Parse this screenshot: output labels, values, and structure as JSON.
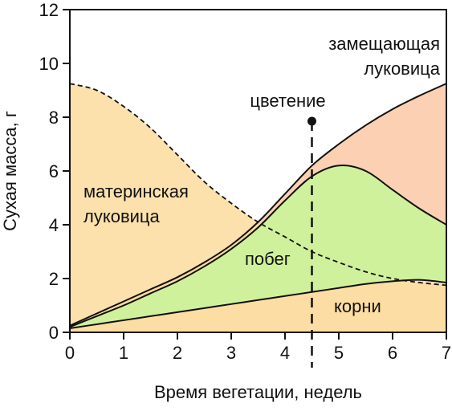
{
  "chart_data": {
    "type": "area",
    "xlabel": "Время вегетации, недель",
    "ylabel": "Сухая масса, г",
    "xlim": [
      0,
      7
    ],
    "ylim": [
      0,
      12
    ],
    "xticks": [
      0,
      1,
      2,
      3,
      4,
      5,
      6,
      7
    ],
    "yticks": [
      0,
      2,
      4,
      6,
      8,
      10,
      12
    ],
    "grid": false,
    "series": [
      {
        "name": "корни",
        "color": "#fde0c2",
        "x": [
          0,
          0.5,
          1,
          1.5,
          2,
          2.5,
          3,
          3.5,
          4,
          4.5,
          5,
          5.5,
          6,
          6.5,
          7
        ],
        "y": [
          0.15,
          0.3,
          0.45,
          0.6,
          0.75,
          0.9,
          1.05,
          1.2,
          1.35,
          1.5,
          1.65,
          1.8,
          1.9,
          1.95,
          1.85
        ]
      },
      {
        "name": "побег",
        "color": "#b9fc9a",
        "x": [
          0,
          0.5,
          1,
          1.5,
          2,
          2.5,
          3,
          3.5,
          4,
          4.5,
          5,
          5.5,
          6,
          6.5,
          7
        ],
        "y": [
          0.2,
          0.6,
          1.0,
          1.45,
          1.9,
          2.45,
          3.1,
          3.9,
          4.9,
          5.8,
          6.2,
          6.0,
          5.3,
          4.6,
          4.0
        ]
      },
      {
        "name": "замещающая луковица",
        "color": "#fbd0b3",
        "x": [
          0,
          0.5,
          1,
          1.5,
          2,
          2.5,
          3,
          3.5,
          4,
          4.5,
          5,
          5.5,
          6,
          6.5,
          7
        ],
        "y": [
          0.25,
          0.7,
          1.15,
          1.6,
          2.05,
          2.6,
          3.25,
          4.1,
          5.15,
          6.2,
          7.0,
          7.7,
          8.3,
          8.8,
          9.25
        ]
      },
      {
        "name": "материнская луковица",
        "color": "#fbdc9e",
        "x": [
          0,
          0.5,
          1,
          1.5,
          2,
          2.5,
          3,
          3.5,
          4,
          4.5,
          5,
          5.5,
          6,
          6.5,
          7
        ],
        "y": [
          9.25,
          9.0,
          8.4,
          7.6,
          6.6,
          5.6,
          4.8,
          4.1,
          3.55,
          3.0,
          2.6,
          2.25,
          2.0,
          1.85,
          1.75
        ]
      }
    ],
    "annotations": [
      {
        "text": "цветение",
        "x": 4.5,
        "y": 7.85,
        "type": "vertical-dashed-line"
      }
    ],
    "labels": [
      {
        "text": [
          "материнская",
          "луковица"
        ],
        "series": "материнская луковица"
      },
      {
        "text": [
          "замещающая",
          "луковица"
        ],
        "series": "замещающая луковица"
      },
      {
        "text": [
          "побег"
        ],
        "series": "побег"
      },
      {
        "text": [
          "корни"
        ],
        "series": "корни"
      }
    ]
  }
}
